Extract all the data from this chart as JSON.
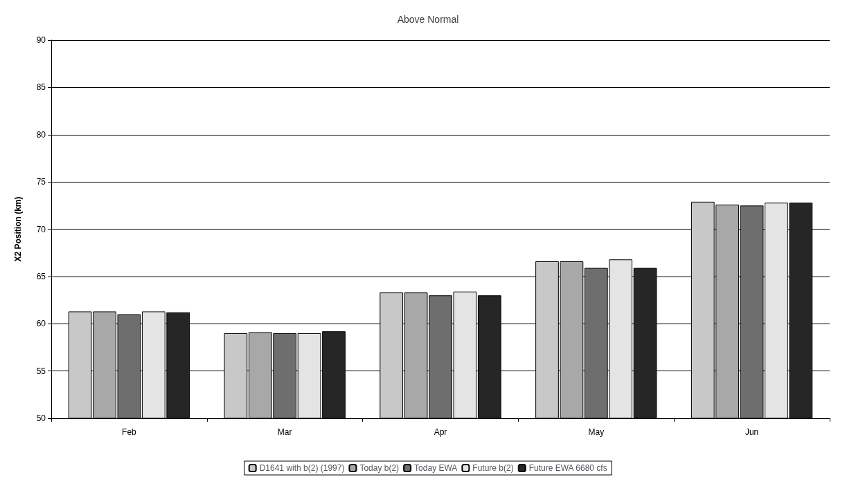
{
  "chart_data": {
    "type": "bar",
    "title": "Above Normal",
    "ylabel": "X2 Position (km)",
    "categories": [
      "Feb",
      "Mar",
      "Apr",
      "May",
      "Jun"
    ],
    "ylim": [
      50,
      90
    ],
    "yticks": [
      50,
      55,
      60,
      65,
      70,
      75,
      80,
      85,
      90
    ],
    "grid": "y",
    "legend": "bottom",
    "series": [
      {
        "name": "D1641 with b(2) (1997)",
        "color": "#c8c8c8",
        "values": [
          61.3,
          59.0,
          63.3,
          66.6,
          72.9
        ]
      },
      {
        "name": "Today b(2)",
        "color": "#a8a8a8",
        "values": [
          61.3,
          59.1,
          63.3,
          66.6,
          72.6
        ]
      },
      {
        "name": "Today EWA",
        "color": "#6e6e6e",
        "values": [
          61.0,
          59.0,
          63.0,
          65.9,
          72.5
        ]
      },
      {
        "name": "Future b(2)",
        "color": "#e4e4e4",
        "values": [
          61.3,
          59.0,
          63.4,
          66.8,
          72.8
        ]
      },
      {
        "name": "Future EWA 6680 cfs",
        "color": "#262626",
        "values": [
          61.2,
          59.2,
          63.0,
          65.9,
          72.8
        ]
      }
    ]
  }
}
